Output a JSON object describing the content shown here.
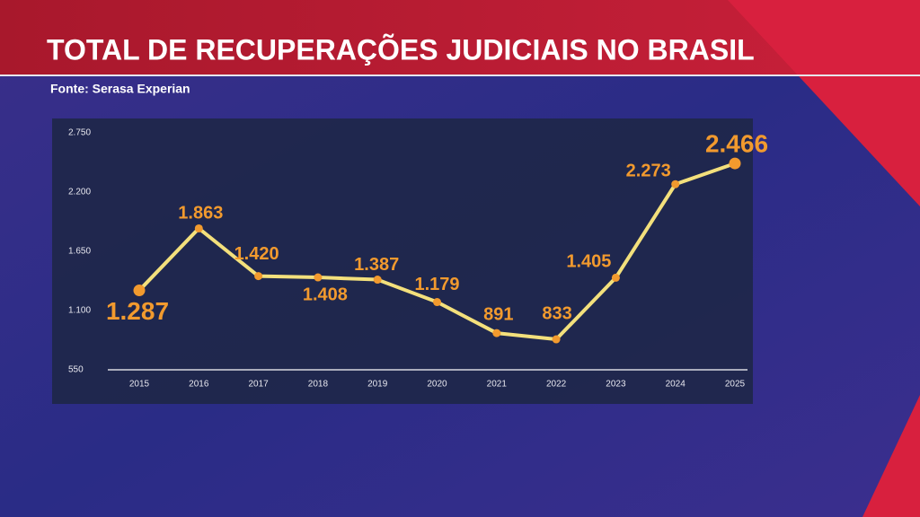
{
  "chart_data": {
    "type": "line",
    "title": "TOTAL DE RECUPERAÇÕES JUDICIAIS NO BRASIL",
    "source": "Fonte: Serasa Experian",
    "categories": [
      "2015",
      "2016",
      "2017",
      "2018",
      "2019",
      "2020",
      "2021",
      "2022",
      "2023",
      "2024",
      "2025"
    ],
    "values": [
      1287,
      1863,
      1420,
      1408,
      1387,
      1179,
      891,
      833,
      1405,
      2273,
      2466
    ],
    "value_labels": [
      "1.287",
      "1.863",
      "1.420",
      "1.408",
      "1.387",
      "1.179",
      "891",
      "833",
      "1.405",
      "2.273",
      "2.466"
    ],
    "color": "#f3e07c",
    "marker_color": "#f29a2e",
    "ylim": [
      550,
      2750
    ],
    "yticks": [
      550,
      {
        "value": 1100,
        "label": "1.100"
      },
      {
        "value": 1650,
        "label": "1.650"
      },
      {
        "value": 2200,
        "label": "2.200"
      },
      {
        "value": 2750,
        "label": "2.750"
      }
    ]
  }
}
